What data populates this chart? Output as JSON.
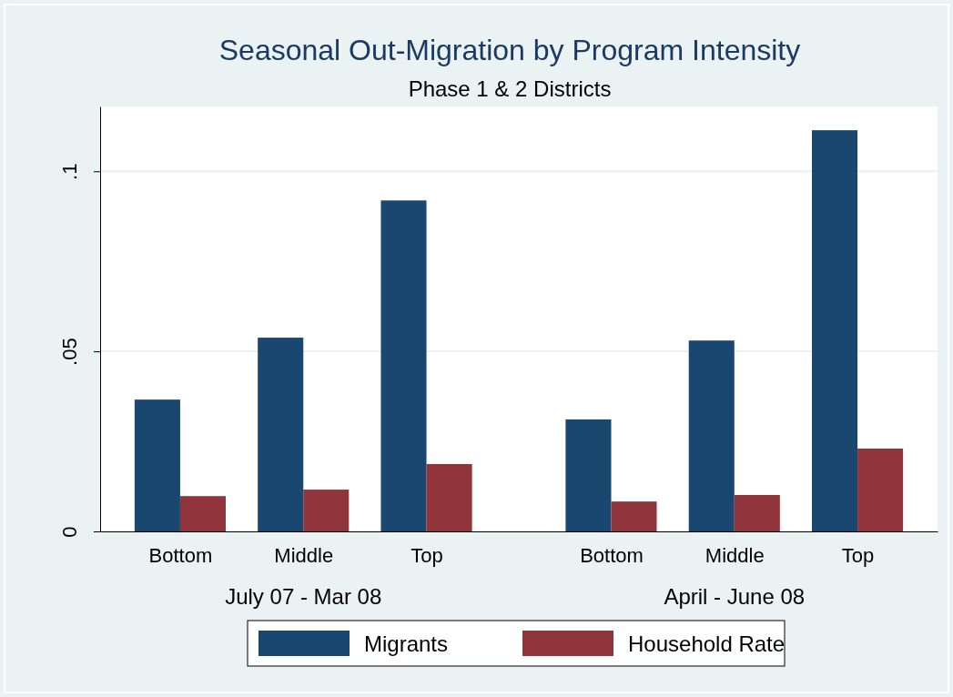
{
  "chart_data": {
    "type": "bar",
    "title": "Seasonal Out-Migration by Program Intensity",
    "subtitle": "Phase 1 & 2 Districts",
    "categories": [
      "Bottom",
      "Middle",
      "Top",
      null,
      "Bottom",
      "Middle",
      "Top"
    ],
    "series": [
      {
        "name": "Migrants",
        "color": "#1a476f",
        "values": [
          0.0366,
          0.0538,
          0.0919,
          null,
          0.0311,
          0.053,
          0.1114
        ]
      },
      {
        "name": "Household Rate",
        "color": "#90353b",
        "values": [
          0.0098,
          0.0116,
          0.0187,
          null,
          0.0083,
          0.0101,
          0.023
        ]
      }
    ],
    "annotations": [
      "July 07 - Mar 08",
      "April - June 08"
    ],
    "ylim": [
      0,
      0.118
    ],
    "yticks": [
      {
        "value": 0,
        "label": "0"
      },
      {
        "value": 0.05,
        "label": ".05"
      },
      {
        "value": 0.1,
        "label": ".1"
      }
    ],
    "grid": "y",
    "legend": "bottom"
  }
}
